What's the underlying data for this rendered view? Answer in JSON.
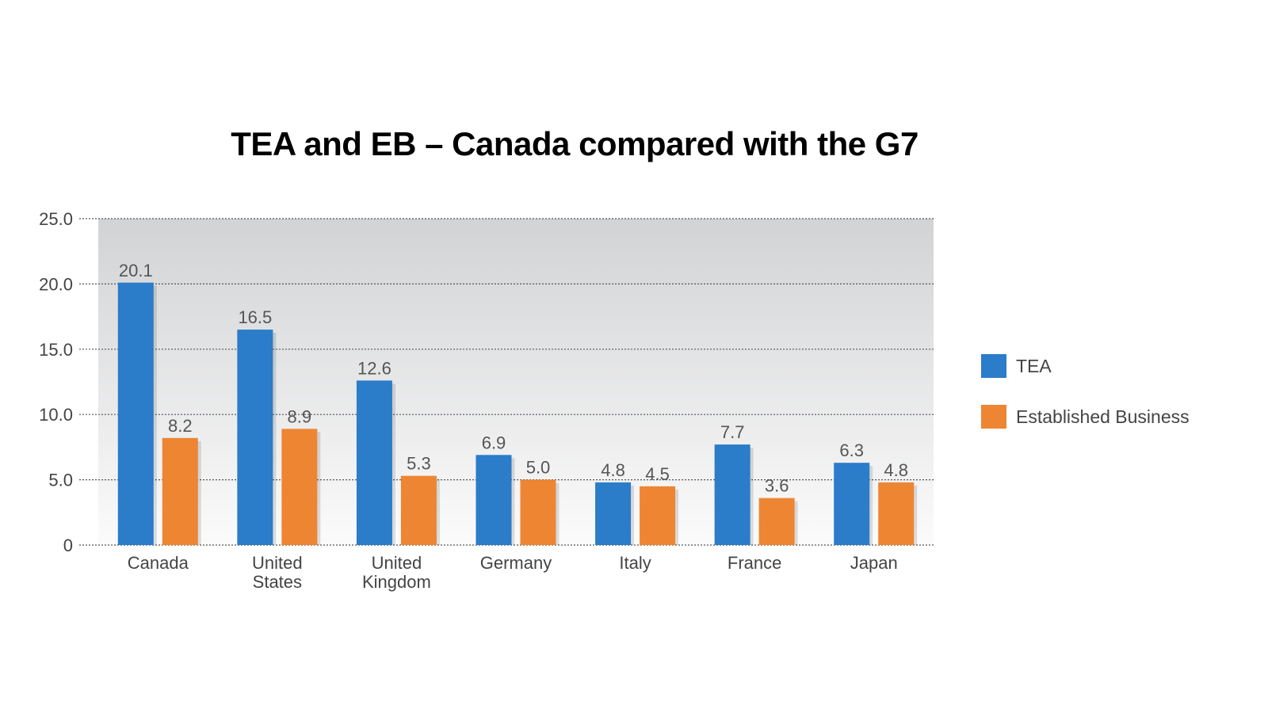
{
  "chart_data": {
    "type": "bar",
    "title": "TEA and EB – Canada compared with the G7",
    "categories": [
      [
        "Canada"
      ],
      [
        "United",
        "States"
      ],
      [
        "United",
        "Kingdom"
      ],
      [
        "Germany"
      ],
      [
        "Italy"
      ],
      [
        "France"
      ],
      [
        "Japan"
      ]
    ],
    "series": [
      {
        "name": "TEA",
        "color": "#2b7cc9",
        "values": [
          20.1,
          16.5,
          12.6,
          6.9,
          4.8,
          7.7,
          6.3
        ],
        "labels": [
          "20.1",
          "16.5",
          "12.6",
          "6.9",
          "4.8",
          "7.7",
          "6.3"
        ]
      },
      {
        "name": "Established Business",
        "color": "#ee8533",
        "values": [
          8.2,
          8.9,
          5.3,
          5.0,
          4.5,
          3.6,
          4.8
        ],
        "labels": [
          "8.2",
          "8.9",
          "5.3",
          "5.0",
          "4.5",
          "3.6",
          "4.8"
        ]
      }
    ],
    "ylim": [
      0,
      25
    ],
    "yticks": [
      0,
      5,
      10,
      15,
      20,
      25
    ],
    "ytick_labels": [
      "0",
      "5.0",
      "10.0",
      "15.0",
      "20.0",
      "25.0"
    ],
    "grid": true,
    "legend": "right"
  }
}
